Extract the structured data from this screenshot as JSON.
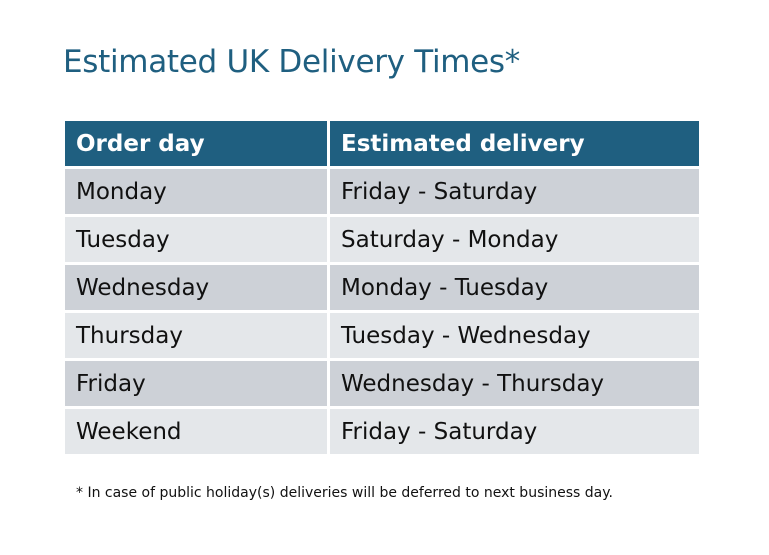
{
  "title": "Estimated UK Delivery Times*",
  "headers": [
    "Order day",
    "Estimated delivery"
  ],
  "rows": [
    [
      "Monday",
      "Friday - Saturday"
    ],
    [
      "Tuesday",
      "Saturday - Monday"
    ],
    [
      "Wednesday",
      "Monday - Tuesday"
    ],
    [
      "Thursday",
      "Tuesday - Wednesday"
    ],
    [
      "Friday",
      "Wednesday - Thursday"
    ],
    [
      "Weekend",
      "Friday - Saturday"
    ]
  ],
  "footnote": "* In case of public holiday(s) deliveries will be deferred to next business day.",
  "colors": {
    "header": "#1f5f80",
    "row_dark": "#cdd1d7",
    "row_light": "#e4e7ea"
  }
}
